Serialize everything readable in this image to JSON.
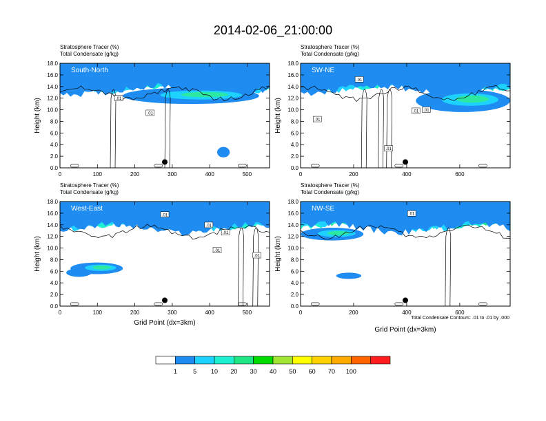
{
  "title": "2014-02-06_21:00:00",
  "panel_header_line1": "Stratosphere Tracer   (%)",
  "panel_header_line2": "Total Condensate   (g/kg)",
  "ylabel": "Height (km)",
  "xlabel": "Grid Point (dx=3km)",
  "contour_note": "Total Condensate Contours: .01 to .01 by .000",
  "colors": {
    "bins": [
      "#ffffff",
      "#1e8cf0",
      "#1ed2ff",
      "#1ef0b4",
      "#2ce864",
      "#00e600",
      "#a0e632",
      "#ffff00",
      "#ffd200",
      "#ffaa00",
      "#ff6a00",
      "#ff1e1e"
    ]
  },
  "chart_data": [
    {
      "type": "heatmap",
      "name": "South-North",
      "xlim": [
        0,
        560
      ],
      "ylim": [
        0,
        18
      ],
      "xticks": [
        "0",
        "100",
        "200",
        "300",
        "400",
        "500"
      ],
      "yticks": [
        "0.0",
        "2.0",
        "4.0",
        "6.0",
        "8.0",
        "10.0",
        "12.0",
        "14.0",
        "16.0",
        "18.0"
      ],
      "contour_labels": [
        ".01",
        ".01"
      ],
      "marker_x": 280,
      "marker_y": 1.0
    },
    {
      "type": "heatmap",
      "name": "SW-NE",
      "xlim": [
        0,
        790
      ],
      "ylim": [
        0,
        18
      ],
      "xticks": [
        "0",
        "200",
        "400",
        "600"
      ],
      "yticks": [
        "0.0",
        "2.0",
        "4.0",
        "6.0",
        "8.0",
        "10.0",
        "12.0",
        "14.0",
        "16.0",
        "18.0"
      ],
      "contour_labels": [
        ".01",
        ".01",
        ".01",
        ".01",
        ".01"
      ],
      "marker_x": 395,
      "marker_y": 1.0
    },
    {
      "type": "heatmap",
      "name": "West-East",
      "xlim": [
        0,
        560
      ],
      "ylim": [
        0,
        18
      ],
      "xticks": [
        "0",
        "100",
        "200",
        "300",
        "400",
        "500"
      ],
      "yticks": [
        "0.0",
        "2.0",
        "4.0",
        "6.0",
        "8.0",
        "10.0",
        "12.0",
        "14.0",
        "16.0",
        "18.0"
      ],
      "contour_labels": [
        ".01",
        ".01",
        ".01",
        ".01",
        ".01"
      ],
      "marker_x": 280,
      "marker_y": 1.0
    },
    {
      "type": "heatmap",
      "name": "NW-SE",
      "xlim": [
        0,
        790
      ],
      "ylim": [
        0,
        18
      ],
      "xticks": [
        "0",
        "200",
        "400",
        "600"
      ],
      "yticks": [
        "0.0",
        "2.0",
        "4.0",
        "6.0",
        "8.0",
        "10.0",
        "12.0",
        "14.0",
        "16.0",
        "18.0"
      ],
      "contour_labels": [
        ".01"
      ],
      "marker_x": 395,
      "marker_y": 1.0
    }
  ],
  "colorbar": {
    "labels": [
      "1",
      "5",
      "10",
      "20",
      "30",
      "40",
      "50",
      "60",
      "70",
      "100"
    ],
    "colors": [
      "#ffffff",
      "#1e8cf0",
      "#1ed2ff",
      "#1ef0d2",
      "#1ee682",
      "#00dc00",
      "#a0e632",
      "#ffff00",
      "#ffd200",
      "#ffaa00",
      "#ff6400",
      "#ff1e1e"
    ]
  }
}
